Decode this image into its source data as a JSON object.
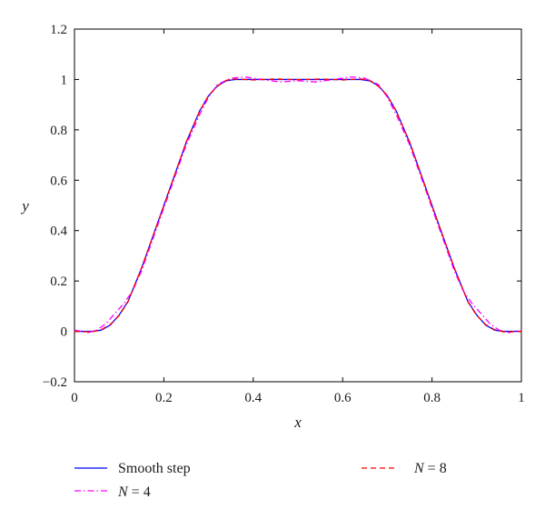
{
  "chart_data": {
    "type": "line",
    "title": "",
    "xlabel": "x",
    "ylabel": "y",
    "xlim": [
      0,
      1
    ],
    "ylim": [
      -0.2,
      1.2
    ],
    "xticks": [
      0,
      0.2,
      0.4,
      0.6,
      0.8,
      1
    ],
    "xtick_labels": [
      "0",
      "0.2",
      "0.4",
      "0.6",
      "0.8",
      "1"
    ],
    "yticks": [
      -0.2,
      0,
      0.2,
      0.4,
      0.6,
      0.8,
      1,
      1.2
    ],
    "ytick_labels": [
      "−0.2",
      "0",
      "0.2",
      "0.4",
      "0.6",
      "0.8",
      "1",
      "1.2"
    ],
    "grid": false,
    "legend_position": "bottom",
    "series": [
      {
        "name": "Smooth step",
        "legend_label": "Smooth step",
        "color": "#0000ff",
        "dash": "solid",
        "x": [
          0,
          0.04,
          0.06,
          0.08,
          0.1,
          0.12,
          0.15,
          0.2,
          0.25,
          0.28,
          0.3,
          0.32,
          0.34,
          0.36,
          0.4,
          0.5,
          0.6,
          0.64,
          0.66,
          0.68,
          0.7,
          0.72,
          0.75,
          0.8,
          0.85,
          0.88,
          0.9,
          0.92,
          0.94,
          0.96,
          1
        ],
        "y": [
          0,
          0,
          0.005,
          0.025,
          0.065,
          0.12,
          0.25,
          0.5,
          0.75,
          0.875,
          0.935,
          0.975,
          0.995,
          1,
          1,
          1,
          1,
          1,
          0.995,
          0.975,
          0.935,
          0.875,
          0.75,
          0.5,
          0.25,
          0.12,
          0.065,
          0.025,
          0.005,
          0,
          0
        ]
      },
      {
        "name": "N = 4",
        "legend_prefix": "N",
        "legend_suffix": " = 4",
        "color": "#ff00ff",
        "dash": "dashdot",
        "x": [
          0,
          0.03,
          0.05,
          0.07,
          0.09,
          0.11,
          0.13,
          0.15,
          0.2,
          0.25,
          0.28,
          0.3,
          0.32,
          0.35,
          0.38,
          0.42,
          0.46,
          0.5,
          0.54,
          0.58,
          0.62,
          0.65,
          0.68,
          0.7,
          0.72,
          0.75,
          0.8,
          0.85,
          0.87,
          0.89,
          0.91,
          0.93,
          0.95,
          0.97,
          1
        ],
        "y": [
          0.005,
          -0.005,
          0.005,
          0.03,
          0.07,
          0.11,
          0.16,
          0.24,
          0.49,
          0.74,
          0.86,
          0.93,
          0.98,
          1.005,
          1.01,
          1.0,
          0.99,
          0.995,
          0.99,
          1.0,
          1.01,
          1.005,
          0.98,
          0.93,
          0.86,
          0.74,
          0.49,
          0.24,
          0.16,
          0.11,
          0.07,
          0.03,
          0.005,
          -0.005,
          0.005
        ]
      },
      {
        "name": "N = 8",
        "legend_prefix": "N",
        "legend_suffix": " = 8",
        "color": "#ff0000",
        "dash": "dashed",
        "x": [
          0,
          0.04,
          0.06,
          0.08,
          0.1,
          0.12,
          0.15,
          0.2,
          0.25,
          0.28,
          0.3,
          0.32,
          0.34,
          0.36,
          0.4,
          0.45,
          0.5,
          0.55,
          0.6,
          0.64,
          0.66,
          0.68,
          0.7,
          0.72,
          0.75,
          0.8,
          0.85,
          0.88,
          0.9,
          0.92,
          0.94,
          0.96,
          1
        ],
        "y": [
          0,
          -0.002,
          0.007,
          0.027,
          0.063,
          0.118,
          0.252,
          0.498,
          0.752,
          0.873,
          0.937,
          0.973,
          0.997,
          1.002,
          0.998,
          1.002,
          0.999,
          1.002,
          0.998,
          1.002,
          0.997,
          0.973,
          0.937,
          0.873,
          0.752,
          0.498,
          0.252,
          0.118,
          0.063,
          0.027,
          0.007,
          -0.002,
          0
        ]
      }
    ]
  }
}
